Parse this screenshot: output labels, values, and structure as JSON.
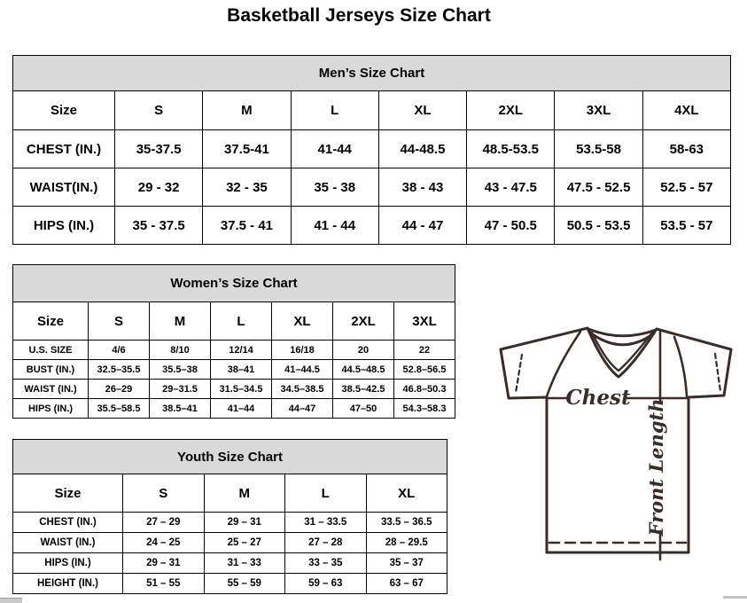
{
  "title": "Basketball Jerseys Size Chart",
  "tables": {
    "mens": {
      "title": "Men’s Size Chart",
      "header": [
        "Size",
        "S",
        "M",
        "L",
        "XL",
        "2XL",
        "3XL",
        "4XL"
      ],
      "rows": [
        {
          "label": "CHEST (IN.)",
          "values": [
            "35-37.5",
            "37.5-41",
            "41-44",
            "44-48.5",
            "48.5-53.5",
            "53.5-58",
            "58-63"
          ]
        },
        {
          "label": "WAIST(IN.)",
          "values": [
            "29 - 32",
            "32 - 35",
            "35 - 38",
            "38 - 43",
            "43 - 47.5",
            "47.5 - 52.5",
            "52.5 - 57"
          ]
        },
        {
          "label": "HIPS (IN.)",
          "values": [
            "35 - 37.5",
            "37.5 - 41",
            "41 - 44",
            "44 - 47",
            "47 - 50.5",
            "50.5 - 53.5",
            "53.5 - 57"
          ]
        }
      ]
    },
    "womens": {
      "title": "Women’s Size Chart",
      "header": [
        "Size",
        "S",
        "M",
        "L",
        "XL",
        "2XL",
        "3XL"
      ],
      "rows": [
        {
          "label": "U.S. SIZE",
          "values": [
            "4/6",
            "8/10",
            "12/14",
            "16/18",
            "20",
            "22"
          ]
        },
        {
          "label": "BUST (IN.)",
          "values": [
            "32.5–35.5",
            "35.5–38",
            "38–41",
            "41–44.5",
            "44.5–48.5",
            "52.8–56.5"
          ]
        },
        {
          "label": "WAIST (IN.)",
          "values": [
            "26–29",
            "29–31.5",
            "31.5–34.5",
            "34.5–38.5",
            "38.5–42.5",
            "46.8–50.3"
          ]
        },
        {
          "label": "HIPS (IN.)",
          "values": [
            "35.5–58.5",
            "38.5–41",
            "41–44",
            "44–47",
            "47–50",
            "54.3–58.3"
          ]
        }
      ]
    },
    "youth": {
      "title": "Youth Size Chart",
      "header": [
        "Size",
        "S",
        "M",
        "L",
        "XL"
      ],
      "rows": [
        {
          "label": "CHEST (IN.)",
          "values": [
            "27 – 29",
            "29 – 31",
            "31 – 33.5",
            "33.5 – 36.5"
          ]
        },
        {
          "label": "WAIST (IN.)",
          "values": [
            "24 – 25",
            "25 – 27",
            "27 – 28",
            "28 – 29.5"
          ]
        },
        {
          "label": "HIPS (IN.)",
          "values": [
            "29 – 31",
            "31 – 33",
            "33 – 35",
            "35 – 37"
          ]
        },
        {
          "label": "HEIGHT (IN.)",
          "values": [
            "51 – 55",
            "55 – 59",
            "59 – 63",
            "63 – 67"
          ]
        }
      ]
    }
  },
  "diagram": {
    "chest_label": "Chest",
    "front_length_label": "Front Length"
  },
  "colors": {
    "table_header_bg": "#d9d9d9",
    "table_border": "#000000",
    "jersey_outline": "#3a2d27"
  }
}
